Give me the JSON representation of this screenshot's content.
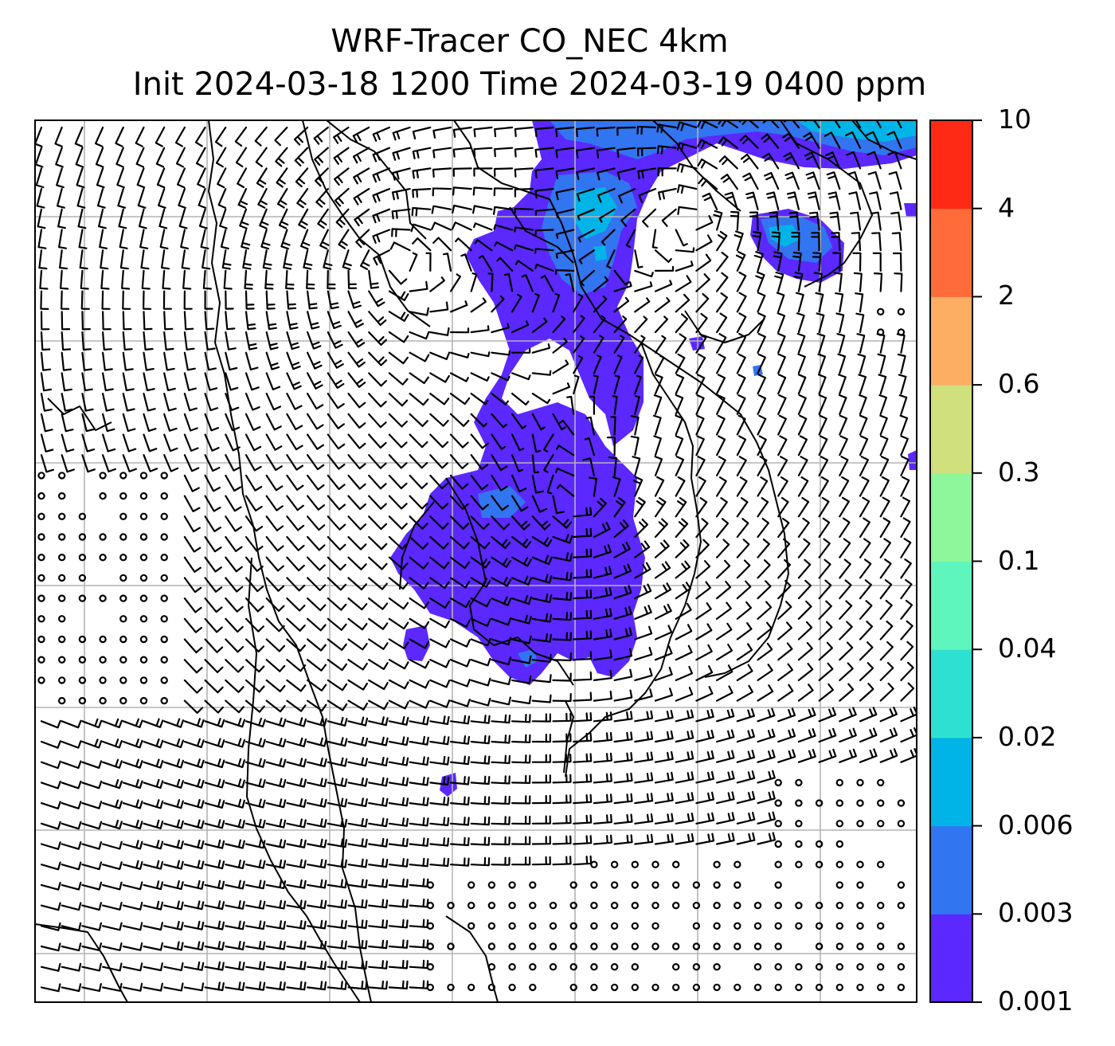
{
  "title": {
    "line1": "WRF-Tracer CO_NEC 4km",
    "line2": "Init 2024-03-18 1200 Time 2024-03-19 0400 ppm"
  },
  "colorbar": {
    "levels": [
      "0.001",
      "0.003",
      "0.006",
      "0.02",
      "0.04",
      "0.1",
      "0.3",
      "0.6",
      "2",
      "4",
      "10"
    ],
    "colors": [
      "#5b28ff",
      "#3275f0",
      "#00b4e8",
      "#2ee0d2",
      "#5ef6bd",
      "#8ef79b",
      "#cfe07d",
      "#fdae62",
      "#ff6c3a",
      "#ff2a16"
    ]
  },
  "map": {
    "plume_colors": {
      "low": "#5b28ff",
      "mid": "#3275f0",
      "high": "#00b4e8"
    },
    "grid_color": "#b4b4b4",
    "coast_color": "#000000",
    "barb_color": "#000000"
  }
}
